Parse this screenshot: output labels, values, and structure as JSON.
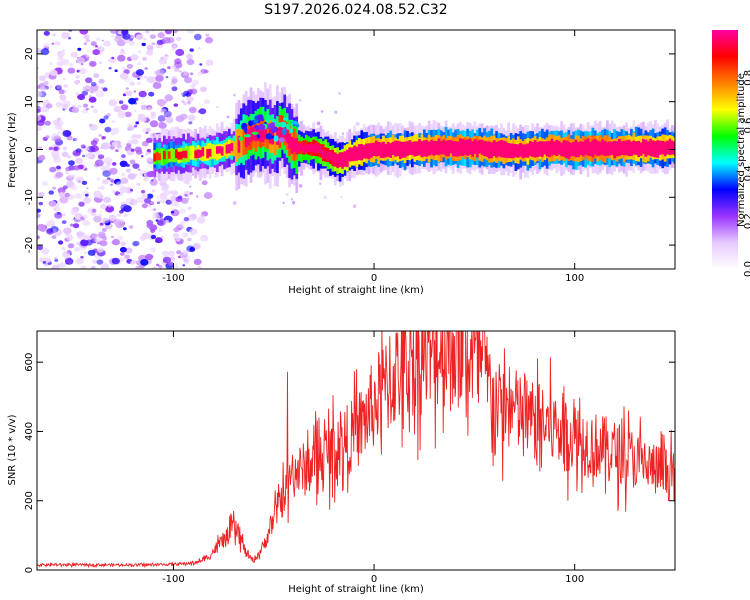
{
  "title": "S197.2026.024.08.52.C32",
  "chart_data": [
    {
      "type": "heatmap",
      "panel": "top",
      "title": "S197.2026.024.08.52.C32",
      "xlabel": "Height of straight line (km)",
      "ylabel": "Frequency (Hz)",
      "xlim": [
        -168,
        150
      ],
      "ylim": [
        -25,
        25
      ],
      "xticks": [
        -100,
        0,
        100
      ],
      "xtick_labels": [
        "-100",
        "0",
        "100"
      ],
      "yticks": [
        -20,
        -10,
        0,
        10,
        20
      ],
      "ytick_labels": [
        "-20",
        "-10",
        "0",
        "10",
        "20"
      ],
      "noise_region_x": [
        -168,
        -90
      ],
      "ridge": {
        "x": [
          -110,
          -95,
          -80,
          -70,
          -62,
          -55,
          -50,
          -46,
          -42,
          -38,
          -30,
          -22,
          -17,
          -12,
          -5,
          0,
          10,
          20,
          30,
          40,
          50,
          60,
          70,
          80,
          90,
          100,
          110,
          120,
          130,
          140,
          150
        ],
        "y": [
          -1.5,
          -1.0,
          -0.5,
          0.5,
          3.0,
          3.5,
          2.0,
          4.5,
          1.0,
          0.3,
          0.2,
          -1.5,
          -2.5,
          -1.0,
          -0.2,
          0.0,
          0.0,
          0.2,
          0.5,
          0.3,
          0.4,
          0.0,
          -0.3,
          0.0,
          0.3,
          0.0,
          0.4,
          0.2,
          0.4,
          0.3,
          0.4
        ],
        "amplitude": [
          0.25,
          0.3,
          0.35,
          0.4,
          0.55,
          0.5,
          0.45,
          0.55,
          0.5,
          0.55,
          0.6,
          0.65,
          0.7,
          0.75,
          0.8,
          0.85,
          0.85,
          0.8,
          0.9,
          0.95,
          0.95,
          0.9,
          0.85,
          0.85,
          0.9,
          0.95,
          0.95,
          0.9,
          0.85,
          0.85,
          0.8
        ]
      },
      "colorbar": {
        "label": "Normalized spectral amplitude",
        "range": [
          0,
          1
        ],
        "ticks": [
          0.0,
          0.2,
          0.4,
          0.6,
          0.8
        ],
        "tick_labels": [
          "0.0",
          "0.2",
          "0.4",
          "0.6",
          "0.8"
        ],
        "colors": [
          "#ffffff",
          "#e6c8ff",
          "#9a33ff",
          "#0000ff",
          "#00ffff",
          "#00ff00",
          "#ffff00",
          "#ff8000",
          "#ff0000",
          "#ff00a0"
        ]
      }
    },
    {
      "type": "line",
      "panel": "bottom",
      "xlabel": "Height of straight line (km)",
      "ylabel": "SNR (10 * v/v)",
      "xlim": [
        -168,
        150
      ],
      "ylim": [
        0,
        690
      ],
      "xticks": [
        -100,
        0,
        100
      ],
      "xtick_labels": [
        "-100",
        "0",
        "100"
      ],
      "yticks": [
        0,
        200,
        400,
        600
      ],
      "ytick_labels": [
        "0",
        "200",
        "400",
        "600"
      ],
      "color": "#ee2222",
      "series": [
        {
          "name": "SNR",
          "x": [
            -168,
            -150,
            -130,
            -110,
            -95,
            -88,
            -82,
            -78,
            -74,
            -70,
            -67,
            -64,
            -60,
            -55,
            -50,
            -45,
            -40,
            -35,
            -30,
            -25,
            -20,
            -15,
            -10,
            -5,
            0,
            5,
            10,
            15,
            20,
            25,
            30,
            35,
            40,
            45,
            50,
            55,
            60,
            62,
            65,
            70,
            75,
            80,
            85,
            90,
            95,
            100,
            105,
            110,
            115,
            120,
            125,
            130,
            135,
            140,
            145,
            150
          ],
          "values": [
            15,
            15,
            15,
            15,
            18,
            22,
            40,
            70,
            90,
            120,
            100,
            50,
            25,
            70,
            150,
            220,
            280,
            290,
            310,
            330,
            350,
            370,
            390,
            430,
            480,
            520,
            560,
            590,
            610,
            620,
            635,
            645,
            650,
            640,
            610,
            570,
            490,
            470,
            470,
            460,
            445,
            430,
            420,
            410,
            400,
            385,
            370,
            360,
            350,
            340,
            330,
            320,
            305,
            290,
            280,
            270
          ]
        }
      ]
    }
  ]
}
